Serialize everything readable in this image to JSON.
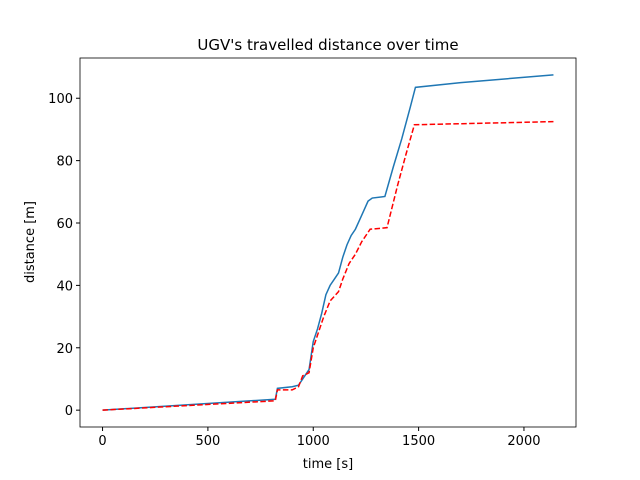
{
  "chart_data": {
    "type": "line",
    "title": "UGV's travelled distance over time",
    "x_label": "time [s]",
    "y_label": "distance [m]",
    "series": [
      {
        "color": "#1f77b4",
        "dash": false,
        "x": [
          0,
          820,
          830,
          900,
          930,
          960,
          980,
          1000,
          1020,
          1040,
          1060,
          1080,
          1100,
          1120,
          1140,
          1160,
          1180,
          1200,
          1220,
          1240,
          1260,
          1280,
          1340,
          1380,
          1420,
          1460,
          1485,
          1700,
          2140
        ],
        "values": [
          0,
          3.5,
          7,
          7.5,
          8,
          11,
          13,
          22,
          26,
          31,
          37,
          40,
          42,
          44,
          49,
          53,
          56,
          58,
          61,
          64,
          67,
          68,
          68.5,
          78,
          87,
          97,
          103.5,
          105,
          107.5
        ]
      },
      {
        "color": "#ff0000",
        "dash": true,
        "x": [
          0,
          820,
          830,
          900,
          930,
          950,
          980,
          1000,
          1020,
          1050,
          1080,
          1120,
          1140,
          1170,
          1200,
          1230,
          1270,
          1350,
          1400,
          1440,
          1480,
          2140
        ],
        "values": [
          0,
          3,
          6.5,
          6.5,
          7.5,
          11,
          12,
          20,
          24,
          30,
          35,
          38,
          42,
          47,
          50,
          54,
          58,
          58.5,
          72,
          82,
          91.5,
          92.5
        ]
      }
    ],
    "xlim": [
      -107,
      2247
    ],
    "ylim": [
      -5.4,
      112.9
    ],
    "xticks": [
      0,
      500,
      1000,
      1500,
      2000
    ],
    "yticks": [
      0,
      20,
      40,
      60,
      80,
      100
    ],
    "grid": false
  }
}
